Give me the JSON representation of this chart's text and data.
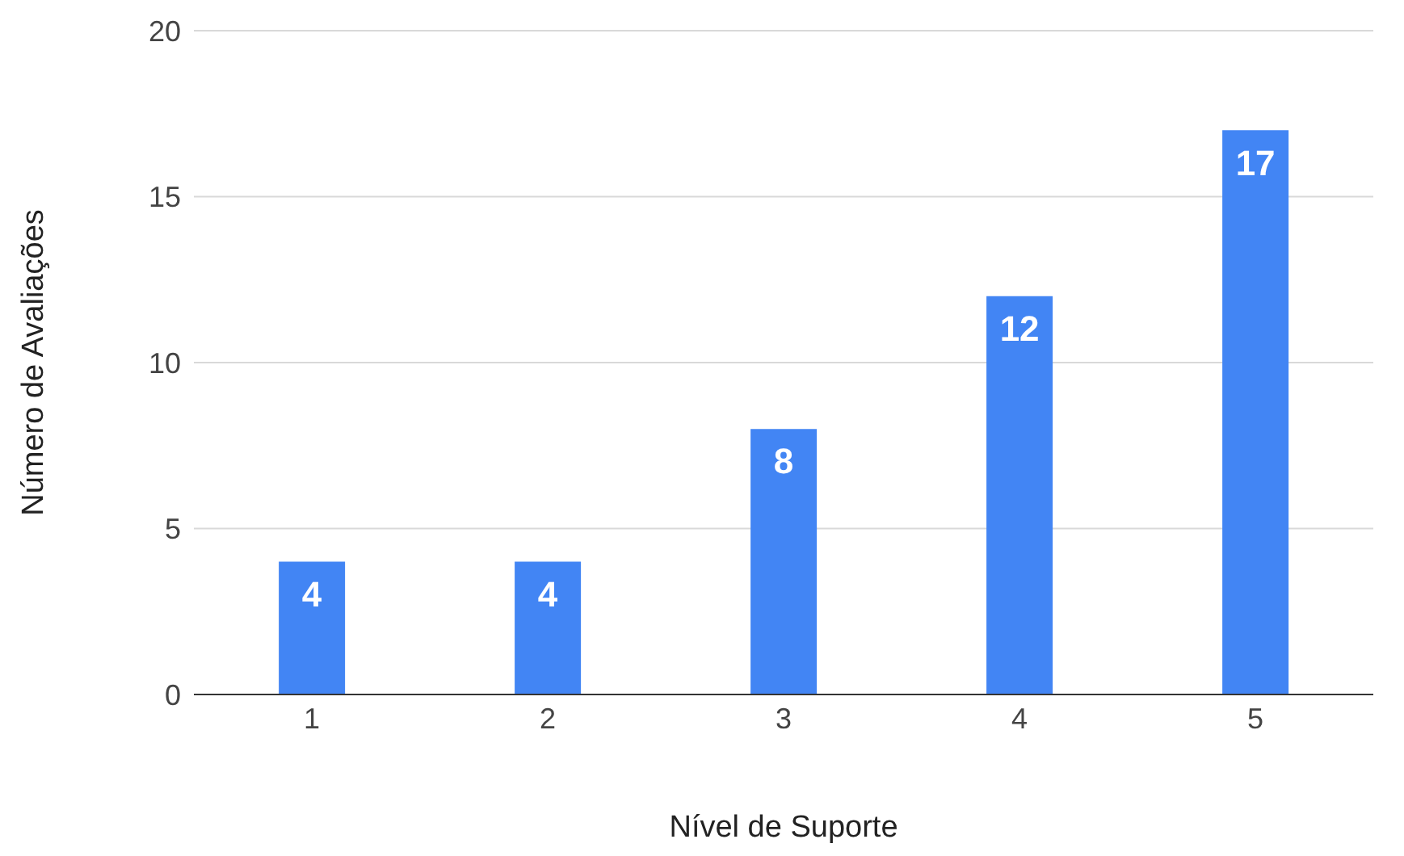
{
  "chart_data": {
    "type": "bar",
    "xlabel": "Nível de Suporte",
    "ylabel": "Número de Avaliações",
    "categories": [
      "1",
      "2",
      "3",
      "4",
      "5"
    ],
    "values": [
      4,
      4,
      8,
      12,
      17
    ],
    "color": "#4285f4",
    "ylim": [
      0,
      20
    ],
    "yticks": [
      0,
      5,
      10,
      15,
      20
    ],
    "grid": "y",
    "data_labels": true
  }
}
